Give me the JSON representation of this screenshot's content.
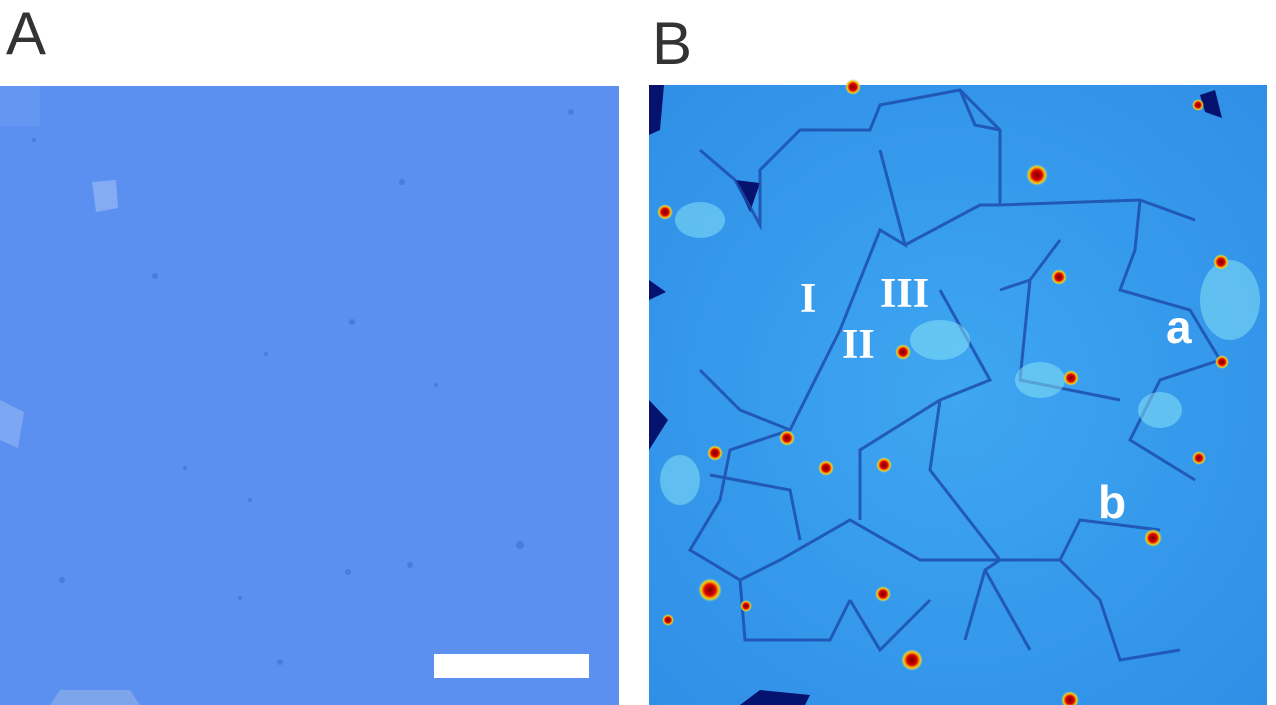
{
  "panels": [
    {
      "label": "A"
    },
    {
      "label": "B",
      "annotations": [
        "I",
        "II",
        "III",
        "a",
        "b"
      ]
    }
  ]
}
